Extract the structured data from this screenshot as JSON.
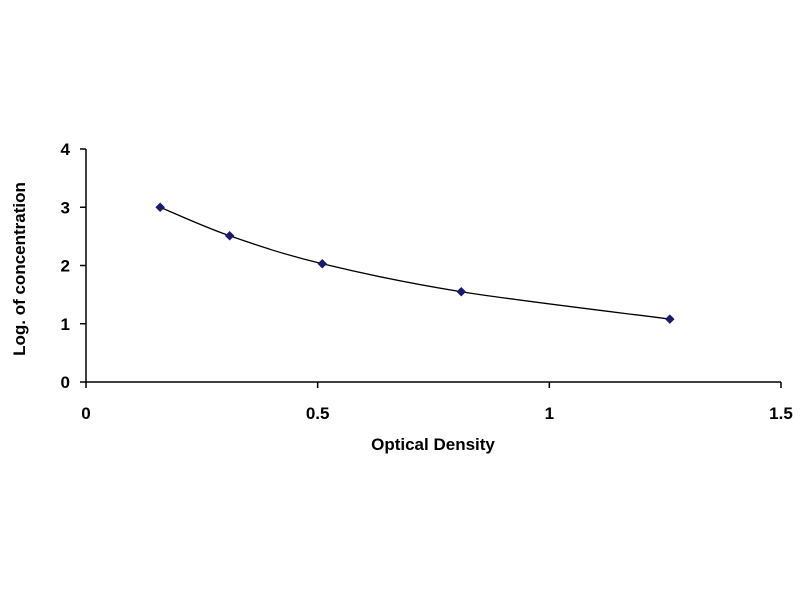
{
  "chart_data": {
    "type": "scatter",
    "title": "",
    "xlabel": "Optical Density",
    "ylabel": "Log. of concentration",
    "xlim": [
      0,
      1.5
    ],
    "ylim": [
      0,
      4
    ],
    "x_ticks": [
      "0",
      "0.5",
      "1",
      "1.5"
    ],
    "y_ticks": [
      "0",
      "1",
      "2",
      "3",
      "4"
    ],
    "grid": false,
    "legend": "none",
    "trendline": "smooth curve through points",
    "series": [
      {
        "x": [
          0.16,
          0.31,
          0.51,
          0.81,
          1.26
        ],
        "y": [
          3.0,
          2.51,
          2.03,
          1.55,
          1.08
        ],
        "color": "#1a1a6e",
        "marker": "diamond"
      }
    ]
  }
}
